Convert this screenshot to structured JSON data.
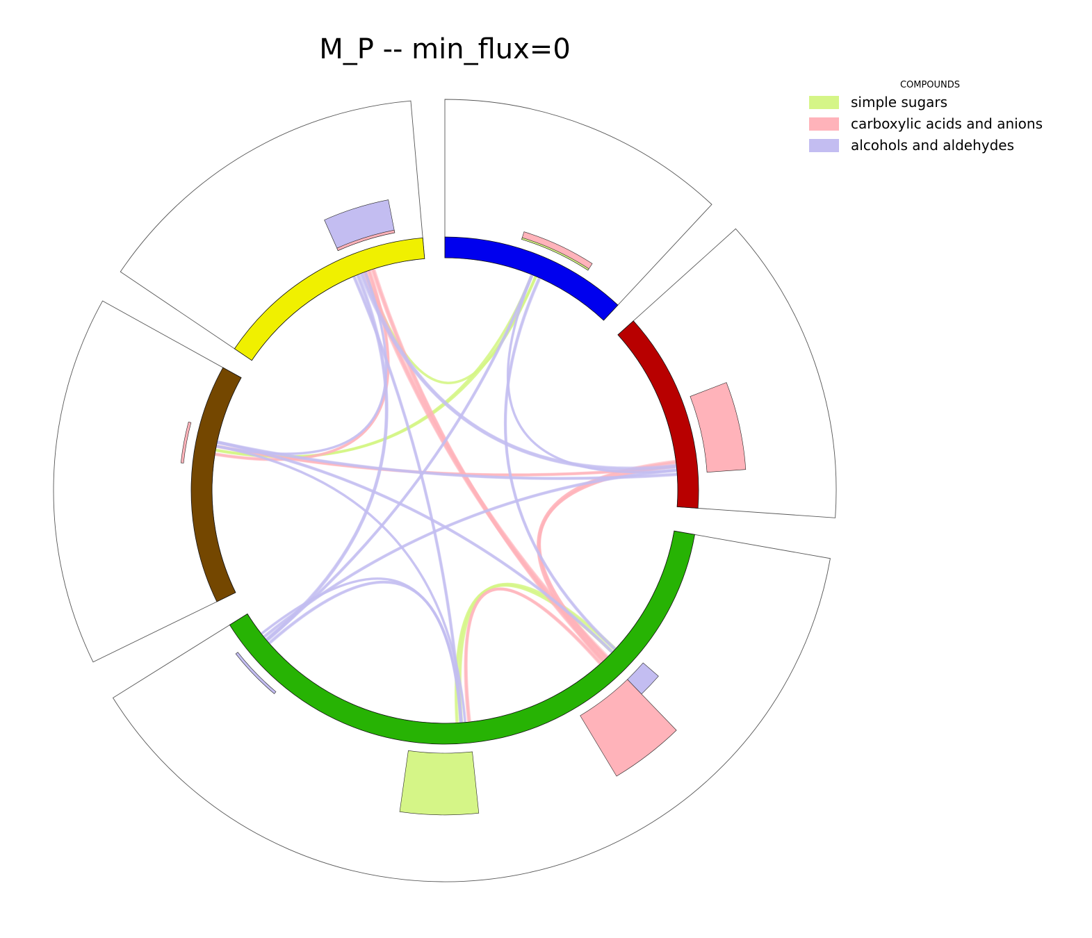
{
  "chart_data": {
    "type": "chord",
    "title": "M_P -- min_flux=0",
    "legend": {
      "title": "COMPOUNDS",
      "placement": "top-right",
      "entries": [
        {
          "label": "simple sugars",
          "color": "#d5f587"
        },
        {
          "label": "carboxylic acids and anions",
          "color": "#ffb3ba"
        },
        {
          "label": "alcohols and aldehydes",
          "color": "#c3bdf1"
        }
      ]
    },
    "nodes": [
      {
        "id": "blue",
        "color": "#0000ee",
        "start_deg": 0,
        "end_deg": 43
      },
      {
        "id": "red",
        "color": "#b80000",
        "start_deg": 48,
        "end_deg": 94
      },
      {
        "id": "green",
        "color": "#27b304",
        "start_deg": 100,
        "end_deg": 238
      },
      {
        "id": "brown",
        "color": "#744700",
        "start_deg": 244,
        "end_deg": 299
      },
      {
        "id": "yellow",
        "color": "#f0f000",
        "start_deg": 304,
        "end_deg": 355
      }
    ],
    "outer_bars": [
      {
        "node": "blue",
        "compound": "carboxylic acids and anions",
        "start_deg": 17,
        "end_deg": 33,
        "level": 0.09
      },
      {
        "node": "blue",
        "compound": "simple sugars",
        "start_deg": 17,
        "end_deg": 33,
        "level": 0.02
      },
      {
        "node": "red",
        "compound": "carboxylic acids and anions",
        "start_deg": 69,
        "end_deg": 86,
        "level": 0.44
      },
      {
        "node": "green",
        "compound": "alcohols and aldehydes",
        "start_deg": 131,
        "end_deg": 136,
        "level": 0.23
      },
      {
        "node": "green",
        "compound": "carboxylic acids and anions",
        "start_deg": 136,
        "end_deg": 149,
        "level": 0.8
      },
      {
        "node": "green",
        "compound": "simple sugars",
        "start_deg": 174,
        "end_deg": 188,
        "level": 0.7
      },
      {
        "node": "green",
        "compound": "alcohols and aldehydes",
        "start_deg": 220,
        "end_deg": 232,
        "level": 0.03
      },
      {
        "node": "brown",
        "compound": "carboxylic acids and anions",
        "start_deg": 276,
        "end_deg": 285,
        "level": 0.03
      },
      {
        "node": "yellow",
        "compound": "alcohols and aldehydes",
        "start_deg": 336,
        "end_deg": 349,
        "level": 0.38
      },
      {
        "node": "yellow",
        "compound": "carboxylic acids and anions",
        "start_deg": 336,
        "end_deg": 349,
        "level": 0.03
      }
    ],
    "chords": [
      {
        "compound": "simple sugars",
        "from_deg": 22,
        "to_deg": 280,
        "width": 1.2
      },
      {
        "compound": "simple sugars",
        "from_deg": 23,
        "to_deg": 340,
        "width": 1.2
      },
      {
        "compound": "simple sugars",
        "from_deg": 23,
        "to_deg": 280,
        "width": 1.0
      },
      {
        "compound": "simple sugars",
        "from_deg": 176,
        "to_deg": 133,
        "width": 2.0
      },
      {
        "compound": "simple sugars",
        "from_deg": 177,
        "to_deg": 134,
        "width": 1.5
      },
      {
        "compound": "carboxylic acids and anions",
        "from_deg": 340,
        "to_deg": 136,
        "width": 3.5
      },
      {
        "compound": "carboxylic acids and anions",
        "from_deg": 342,
        "to_deg": 137,
        "width": 2.5
      },
      {
        "compound": "carboxylic acids and anions",
        "from_deg": 341,
        "to_deg": 279,
        "width": 1.5
      },
      {
        "compound": "carboxylic acids and anions",
        "from_deg": 83,
        "to_deg": 137,
        "width": 2.5
      },
      {
        "compound": "carboxylic acids and anions",
        "from_deg": 84,
        "to_deg": 136,
        "width": 1.5
      },
      {
        "compound": "carboxylic acids and anions",
        "from_deg": 174,
        "to_deg": 138,
        "width": 2.0
      },
      {
        "compound": "carboxylic acids and anions",
        "from_deg": 84,
        "to_deg": 281,
        "width": 1.5
      },
      {
        "compound": "alcohols and aldehydes",
        "from_deg": 339,
        "to_deg": 84,
        "width": 2.5
      },
      {
        "compound": "alcohols and aldehydes",
        "from_deg": 338,
        "to_deg": 230,
        "width": 2.0
      },
      {
        "compound": "alcohols and aldehydes",
        "from_deg": 337,
        "to_deg": 176,
        "width": 1.5
      },
      {
        "compound": "alcohols and aldehydes",
        "from_deg": 22,
        "to_deg": 230,
        "width": 1.5
      },
      {
        "compound": "alcohols and aldehydes",
        "from_deg": 24,
        "to_deg": 133,
        "width": 1.5
      },
      {
        "compound": "alcohols and aldehydes",
        "from_deg": 85,
        "to_deg": 231,
        "width": 1.5
      },
      {
        "compound": "alcohols and aldehydes",
        "from_deg": 86,
        "to_deg": 282,
        "width": 1.5
      },
      {
        "compound": "alcohols and aldehydes",
        "from_deg": 282,
        "to_deg": 134,
        "width": 1.5
      },
      {
        "compound": "alcohols and aldehydes",
        "from_deg": 281,
        "to_deg": 175,
        "width": 1.0
      },
      {
        "compound": "alcohols and aldehydes",
        "from_deg": 176,
        "to_deg": 229,
        "width": 1.5
      },
      {
        "compound": "alcohols and aldehydes",
        "from_deg": 176,
        "to_deg": 232,
        "width": 1.0
      },
      {
        "compound": "alcohols and aldehydes",
        "from_deg": 22,
        "to_deg": 85,
        "width": 1.0
      },
      {
        "compound": "alcohols and aldehydes",
        "from_deg": 281,
        "to_deg": 340,
        "width": 1.0
      }
    ]
  }
}
